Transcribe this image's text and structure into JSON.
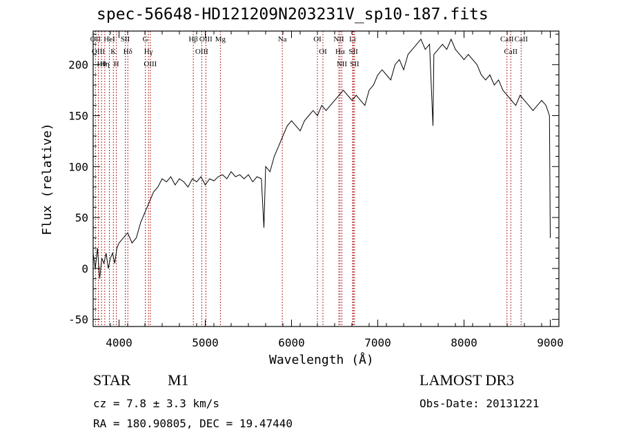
{
  "chart_data": {
    "type": "line",
    "title": "spec-56648-HD121209N203231V_sp10-187.fits",
    "xlabel": "Wavelength (Å)",
    "ylabel": "Flux (relative)",
    "xlim": [
      3700,
      9100
    ],
    "ylim": [
      -57,
      233
    ],
    "xticks": [
      4000,
      5000,
      6000,
      7000,
      8000,
      9000
    ],
    "yticks": [
      -50,
      0,
      50,
      100,
      150,
      200
    ],
    "grid": false,
    "line_color": "#000000",
    "marker_color": "#b22222",
    "series": [
      {
        "name": "Spectrum",
        "x": [
          3700,
          3725,
          3750,
          3775,
          3800,
          3825,
          3850,
          3875,
          3900,
          3925,
          3950,
          3975,
          4000,
          4050,
          4100,
          4150,
          4200,
          4250,
          4300,
          4350,
          4400,
          4450,
          4500,
          4550,
          4600,
          4650,
          4700,
          4750,
          4800,
          4850,
          4900,
          4950,
          5000,
          5050,
          5100,
          5150,
          5200,
          5250,
          5300,
          5350,
          5400,
          5450,
          5500,
          5550,
          5600,
          5650,
          5680,
          5700,
          5750,
          5800,
          5850,
          5900,
          5950,
          6000,
          6050,
          6100,
          6150,
          6200,
          6250,
          6300,
          6350,
          6400,
          6450,
          6500,
          6550,
          6600,
          6650,
          6700,
          6750,
          6800,
          6850,
          6900,
          6950,
          7000,
          7050,
          7100,
          7150,
          7200,
          7250,
          7300,
          7350,
          7400,
          7450,
          7500,
          7550,
          7600,
          7640,
          7650,
          7700,
          7750,
          7800,
          7850,
          7900,
          7950,
          8000,
          8050,
          8100,
          8150,
          8200,
          8250,
          8300,
          8350,
          8400,
          8450,
          8500,
          8550,
          8600,
          8650,
          8700,
          8750,
          8800,
          8850,
          8900,
          8950,
          8990,
          9000
        ],
        "y": [
          15,
          0,
          20,
          -10,
          10,
          5,
          15,
          0,
          10,
          15,
          5,
          20,
          25,
          30,
          35,
          25,
          30,
          45,
          55,
          65,
          75,
          80,
          88,
          85,
          90,
          82,
          88,
          85,
          80,
          88,
          85,
          90,
          82,
          88,
          86,
          90,
          92,
          88,
          95,
          90,
          92,
          88,
          92,
          85,
          90,
          88,
          40,
          100,
          95,
          110,
          120,
          130,
          140,
          145,
          140,
          135,
          145,
          150,
          155,
          150,
          160,
          155,
          160,
          165,
          170,
          175,
          170,
          165,
          170,
          165,
          160,
          175,
          180,
          190,
          195,
          190,
          185,
          200,
          205,
          195,
          210,
          215,
          220,
          225,
          215,
          220,
          140,
          210,
          215,
          220,
          215,
          225,
          215,
          210,
          205,
          210,
          205,
          200,
          190,
          185,
          190,
          180,
          185,
          175,
          170,
          165,
          160,
          170,
          165,
          160,
          155,
          160,
          165,
          160,
          150,
          30
        ]
      }
    ],
    "lines": [
      {
        "name": "Hθ",
        "wavelength": 3797
      },
      {
        "name": "OII",
        "wavelength": 3727
      },
      {
        "name": "OIII",
        "wavelength": 3760
      },
      {
        "name": "HeI",
        "wavelength": 3888
      },
      {
        "name": "Hη",
        "wavelength": 3835
      },
      {
        "name": "K",
        "wavelength": 3934
      },
      {
        "name": "H",
        "wavelength": 3969
      },
      {
        "name": "SII",
        "wavelength": 4072
      },
      {
        "name": "Hδ",
        "wavelength": 4102
      },
      {
        "name": "OIII",
        "wavelength": 4363
      },
      {
        "name": "Hγ",
        "wavelength": 4341
      },
      {
        "name": "G",
        "wavelength": 4305
      },
      {
        "name": "Hβ",
        "wavelength": 4861
      },
      {
        "name": "OIII",
        "wavelength": 4959
      },
      {
        "name": "OIII",
        "wavelength": 5007
      },
      {
        "name": "Mg",
        "wavelength": 5175
      },
      {
        "name": "Na",
        "wavelength": 5893
      },
      {
        "name": "OI",
        "wavelength": 6300
      },
      {
        "name": "OI",
        "wavelength": 6364
      },
      {
        "name": "Hα",
        "wavelength": 6563
      },
      {
        "name": "NII",
        "wavelength": 6548
      },
      {
        "name": "NII",
        "wavelength": 6583
      },
      {
        "name": "SII",
        "wavelength": 6717
      },
      {
        "name": "SII",
        "wavelength": 6731
      },
      {
        "name": "Li",
        "wavelength": 6708
      },
      {
        "name": "CaII",
        "wavelength": 8498
      },
      {
        "name": "CaII",
        "wavelength": 8542
      },
      {
        "name": "CaII",
        "wavelength": 8662
      }
    ]
  },
  "info": {
    "object_class": "STAR",
    "subclass": "M1",
    "cz": "cz = 7.8 ± 3.3 km/s",
    "coords": "RA = 180.90805, DEC =  19.47440",
    "survey": "LAMOST DR3",
    "obs_date": "Obs-Date: 20131221"
  }
}
